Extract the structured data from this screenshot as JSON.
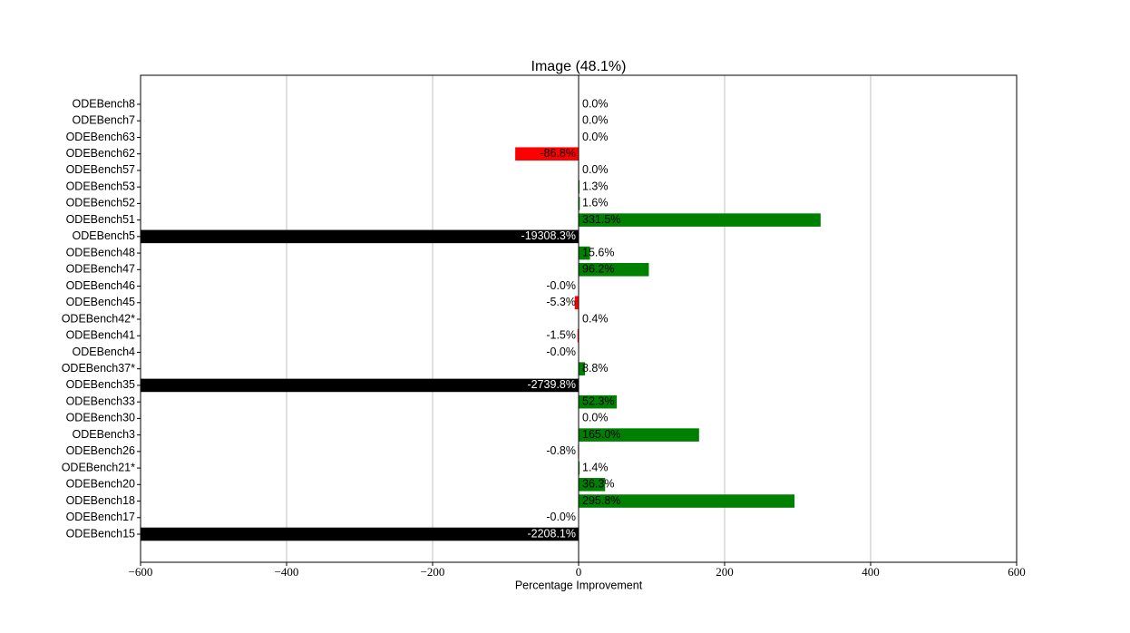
{
  "chart_data": {
    "type": "barh",
    "title": "Image (48.1%)",
    "xlabel": "Percentage Improvement",
    "categories": [
      "ODEBench8",
      "ODEBench7",
      "ODEBench63",
      "ODEBench62",
      "ODEBench57",
      "ODEBench53",
      "ODEBench52",
      "ODEBench51",
      "ODEBench5",
      "ODEBench48",
      "ODEBench47",
      "ODEBench46",
      "ODEBench45",
      "ODEBench42*",
      "ODEBench41",
      "ODEBench4",
      "ODEBench37*",
      "ODEBench35",
      "ODEBench33",
      "ODEBench30",
      "ODEBench3",
      "ODEBench26",
      "ODEBench21*",
      "ODEBench20",
      "ODEBench18",
      "ODEBench17",
      "ODEBench15"
    ],
    "values": [
      0.0,
      0.0,
      0.0,
      -86.8,
      0.0,
      1.3,
      1.6,
      331.5,
      -19308.3,
      15.6,
      96.2,
      -0.0,
      -5.3,
      0.4,
      -1.5,
      -0.0,
      8.8,
      -2739.8,
      52.3,
      0.0,
      165.0,
      -0.8,
      1.4,
      36.3,
      295.8,
      -0.0,
      -2208.1
    ],
    "value_labels": [
      "0.0%",
      "0.0%",
      "0.0%",
      "-86.8%",
      "0.0%",
      "1.3%",
      "1.6%",
      "331.5%",
      "-19308.3%",
      "15.6%",
      "96.2%",
      "-0.0%",
      "-5.3%",
      "0.4%",
      "-1.5%",
      "-0.0%",
      "8.8%",
      "-2739.8%",
      "52.3%",
      "0.0%",
      "165.0%",
      "-0.8%",
      "1.4%",
      "36.3%",
      "295.8%",
      "-0.0%",
      "-2208.1%"
    ],
    "positive_color": "#008000",
    "negative_color": "#ff0000",
    "clipped_color": "#000000",
    "xlim": [
      -600,
      600
    ],
    "xticks": [
      {
        "value": -600,
        "label": "−600"
      },
      {
        "value": -400,
        "label": "−400"
      },
      {
        "value": -200,
        "label": "−200"
      },
      0,
      200,
      400,
      600
    ],
    "grid": true
  }
}
